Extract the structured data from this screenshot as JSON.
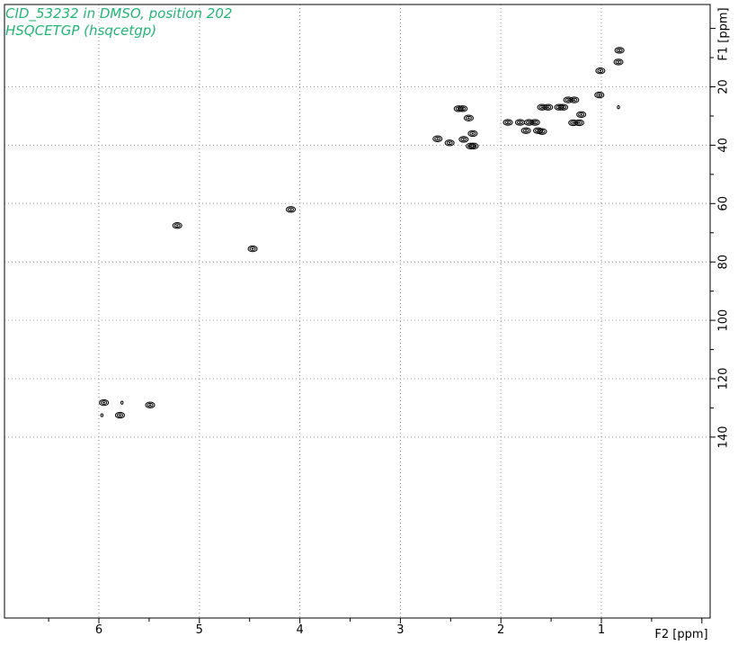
{
  "title": {
    "line1": "CID_53232 in DMSO, position 202",
    "line2": "HSQCETGP (hsqcetgp)",
    "color": "#22b573"
  },
  "chart_data": {
    "type": "scatter",
    "subtype": "2D NMR contour plot",
    "x_axis": {
      "label": "F2 [ppm]",
      "range": [
        7.0,
        -0.2
      ],
      "reversed": true,
      "tick_labels": [
        "6",
        "5",
        "4",
        "3",
        "2",
        "1"
      ],
      "tick_values": [
        6,
        5,
        4,
        3,
        2,
        1
      ]
    },
    "y_axis": {
      "label": "F1 [ppm]",
      "position": "right",
      "range": [
        -7,
        147
      ],
      "reversed": true,
      "tick_labels": [
        "20",
        "40",
        "60",
        "80",
        "100",
        "120",
        "140"
      ],
      "tick_values": [
        20,
        40,
        60,
        80,
        100,
        120,
        140
      ]
    },
    "grid": true,
    "grid_style": "dotted",
    "contour_color": "#000000",
    "peaks": [
      {
        "x": 0.82,
        "y": 7.5
      },
      {
        "x": 0.83,
        "y": 11.5
      },
      {
        "x": 1.01,
        "y": 14.5
      },
      {
        "x": 1.02,
        "y": 22.8
      },
      {
        "x": 1.27,
        "y": 24.5
      },
      {
        "x": 1.33,
        "y": 24.5
      },
      {
        "x": 1.38,
        "y": 27.0
      },
      {
        "x": 1.42,
        "y": 27.0
      },
      {
        "x": 1.53,
        "y": 27.0
      },
      {
        "x": 1.59,
        "y": 27.0
      },
      {
        "x": 1.2,
        "y": 29.5
      },
      {
        "x": 1.22,
        "y": 32.3
      },
      {
        "x": 1.28,
        "y": 32.3
      },
      {
        "x": 1.66,
        "y": 32.2
      },
      {
        "x": 1.72,
        "y": 32.2
      },
      {
        "x": 1.81,
        "y": 32.2
      },
      {
        "x": 1.93,
        "y": 32.2
      },
      {
        "x": 1.75,
        "y": 35.0
      },
      {
        "x": 1.59,
        "y": 35.3
      },
      {
        "x": 1.63,
        "y": 35.0
      },
      {
        "x": 2.38,
        "y": 27.5
      },
      {
        "x": 2.42,
        "y": 27.5
      },
      {
        "x": 2.32,
        "y": 30.7
      },
      {
        "x": 2.28,
        "y": 36.0
      },
      {
        "x": 2.37,
        "y": 38.0
      },
      {
        "x": 2.63,
        "y": 37.8
      },
      {
        "x": 2.51,
        "y": 39.2
      },
      {
        "x": 2.3,
        "y": 40.3
      },
      {
        "x": 2.27,
        "y": 40.3
      },
      {
        "x": 0.83,
        "y": 27.0,
        "tiny": true
      },
      {
        "x": 4.09,
        "y": 62.0
      },
      {
        "x": 5.22,
        "y": 67.5
      },
      {
        "x": 4.47,
        "y": 75.5
      },
      {
        "x": 5.95,
        "y": 128.2
      },
      {
        "x": 5.77,
        "y": 128.2,
        "tiny": true
      },
      {
        "x": 5.49,
        "y": 129.0
      },
      {
        "x": 5.79,
        "y": 132.5
      },
      {
        "x": 5.97,
        "y": 132.5,
        "tiny": true
      }
    ]
  }
}
